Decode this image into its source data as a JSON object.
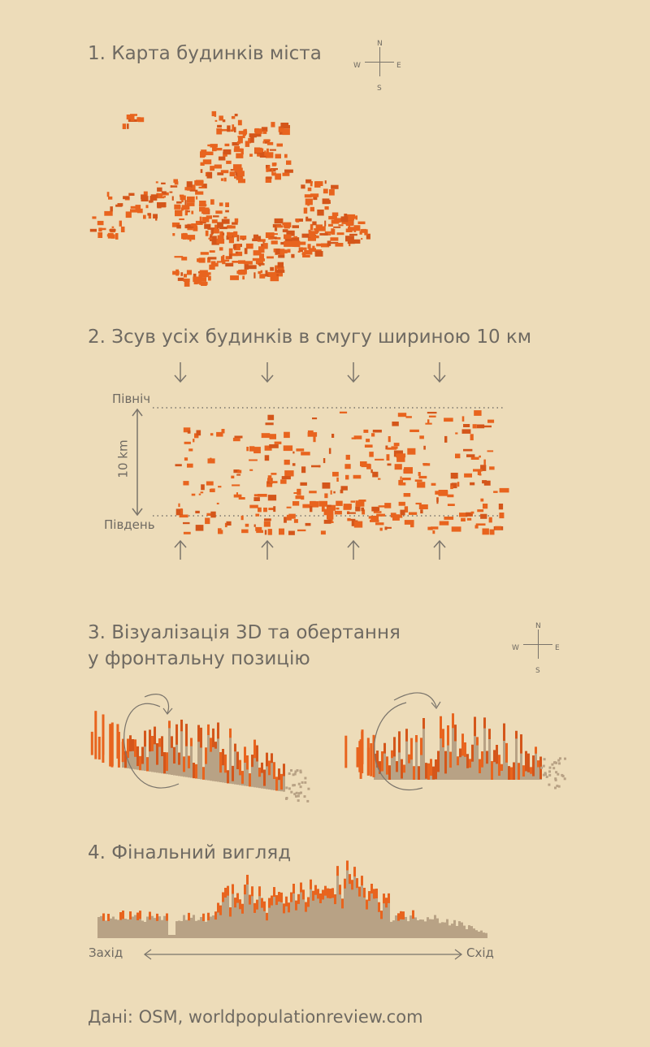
{
  "step1": {
    "title": "1. Карта будинків міста"
  },
  "compass": {
    "north": "N",
    "south": "S",
    "west": "W",
    "east": "E"
  },
  "step2": {
    "title": "2. Зсув усіх будинків в смугу шириною 10 км",
    "north_label": "Північ",
    "south_label": "Південь",
    "width_label": "10 km"
  },
  "step3": {
    "title_line1": "3. Візуалізація 3D та обертання",
    "title_line2": "у фронтальну позицію"
  },
  "step4": {
    "title": "4. Фінальний вигляд",
    "west_label": "Захід",
    "east_label": "Схід"
  },
  "footer": {
    "source": "Дані: OSM, worldpopulationreview.com"
  },
  "colors": {
    "background": "#eddcb9",
    "building_orange": "#e8641e",
    "building_dark_orange": "#d4561a",
    "building_base": "#b8a285",
    "text": "#6f6a62"
  }
}
